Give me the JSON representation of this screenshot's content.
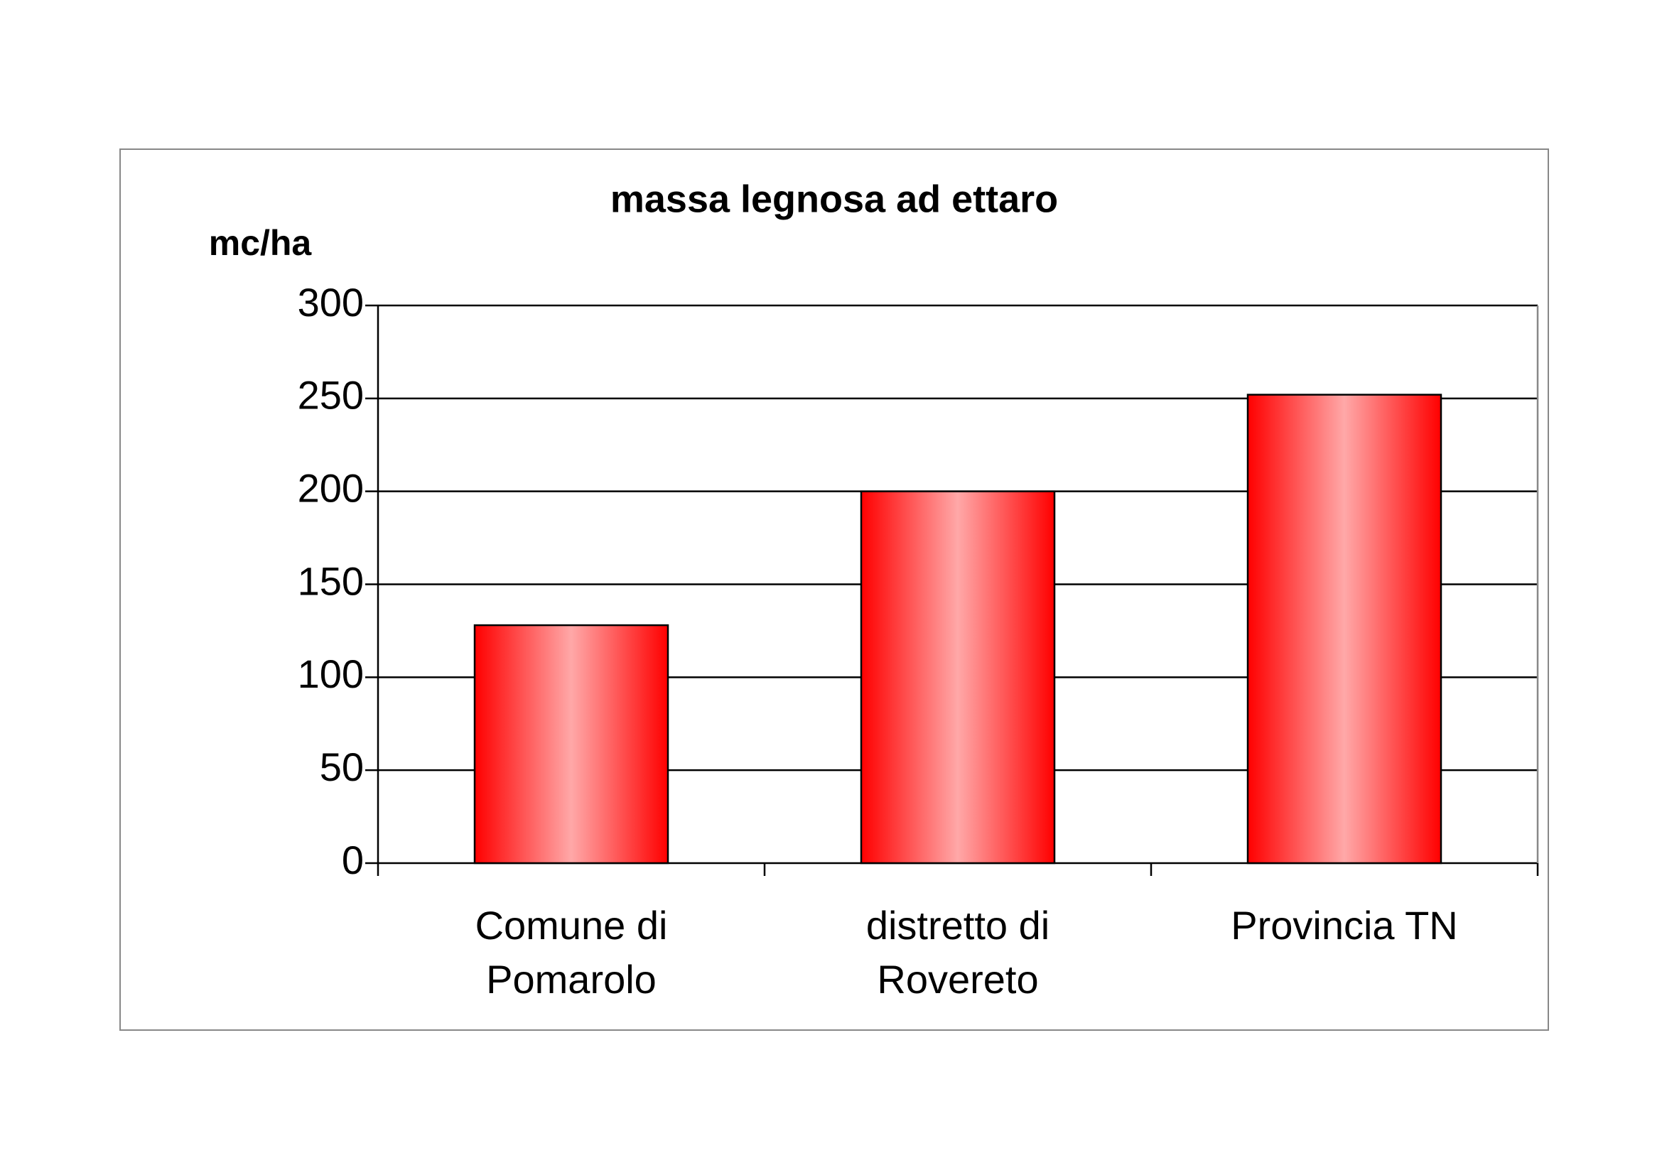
{
  "chart_data": {
    "type": "bar",
    "title": "massa legnosa ad ettaro",
    "y_label": "mc/ha",
    "categories": [
      "Comune di Pomarolo",
      "distretto di Rovereto",
      "Provincia TN"
    ],
    "values": [
      128,
      200,
      252
    ],
    "color": "#ff0000",
    "ylim": [
      0,
      300
    ],
    "yticks": [
      0,
      50,
      100,
      150,
      200,
      250,
      300
    ],
    "grid": true
  }
}
